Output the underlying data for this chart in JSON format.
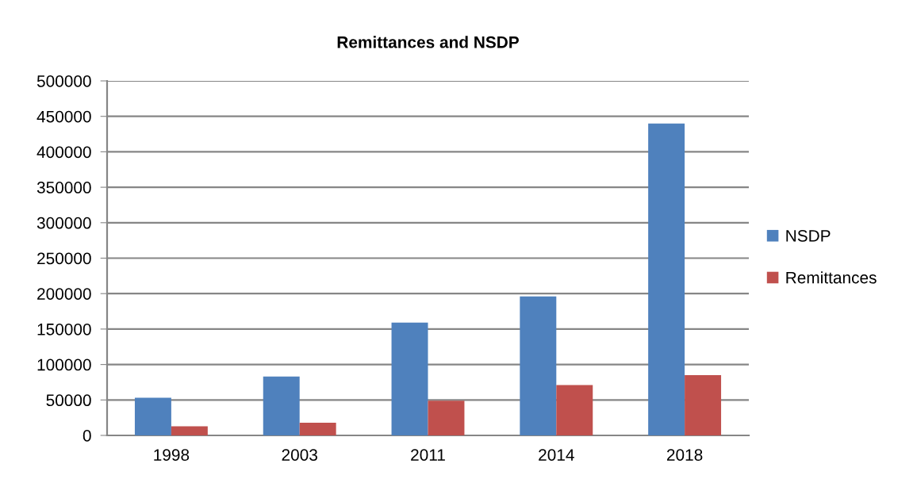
{
  "chart_data": {
    "type": "bar",
    "title": "Remittances and NSDP",
    "categories": [
      "1998",
      "2003",
      "2011",
      "2014",
      "2018"
    ],
    "series": [
      {
        "name": "NSDP",
        "color": "#4f81bd",
        "values": [
          53000,
          83000,
          159000,
          196000,
          440000
        ]
      },
      {
        "name": "Remittances",
        "color": "#c0504d",
        "values": [
          13000,
          18000,
          49000,
          71000,
          85000
        ]
      }
    ],
    "ylim": [
      0,
      500000
    ],
    "yticks": [
      0,
      50000,
      100000,
      150000,
      200000,
      250000,
      300000,
      350000,
      400000,
      450000,
      500000
    ],
    "grid": "y",
    "legend": "right"
  }
}
